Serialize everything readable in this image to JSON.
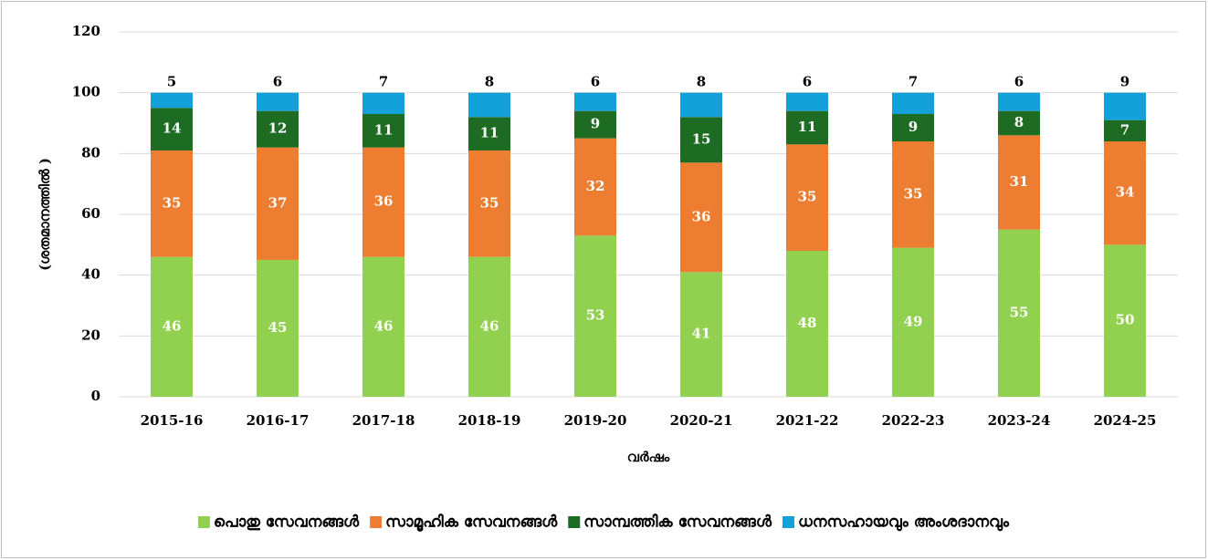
{
  "chart_data": {
    "type": "stacked_bar",
    "y_label": "(ശതമാനത്തിൽ )",
    "x_label": "വർഷം",
    "categories": [
      "2015-16",
      "2016-17",
      "2017-18",
      "2018-19",
      "2019-20",
      "2020-21",
      "2021-22",
      "2022-23",
      "2023-24",
      "2024-25"
    ],
    "series": [
      {
        "name": "പൊതു സേവനങ്ങൾ",
        "color": "#92d050",
        "values": [
          46,
          45,
          46,
          46,
          53,
          41,
          48,
          49,
          55,
          50
        ]
      },
      {
        "name": "സാമൂഹിക സേവനങ്ങൾ",
        "color": "#ed7d31",
        "values": [
          35,
          37,
          36,
          35,
          32,
          36,
          35,
          35,
          31,
          34
        ]
      },
      {
        "name": "സാമ്പത്തിക സേവനങ്ങൾ",
        "color": "#1e6b24",
        "values": [
          14,
          12,
          11,
          11,
          9,
          15,
          11,
          9,
          8,
          7
        ]
      },
      {
        "name": "ധനസഹായവും അംശദാനവും",
        "color": "#14a0d8",
        "values": [
          5,
          6,
          7,
          8,
          6,
          8,
          6,
          7,
          6,
          9
        ]
      }
    ],
    "ylim": [
      0,
      120
    ],
    "yticks": [
      0,
      20,
      40,
      60,
      80,
      100,
      120
    ],
    "grid": true,
    "legend": "bottom"
  }
}
